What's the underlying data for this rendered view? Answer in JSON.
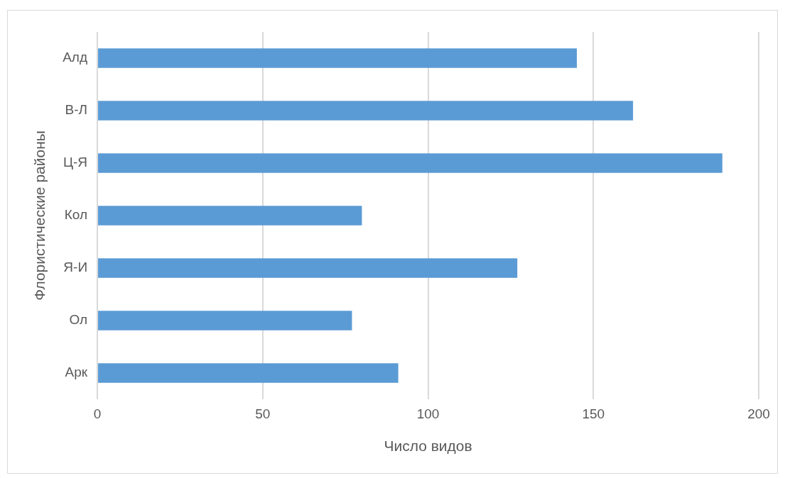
{
  "chart_data": {
    "type": "bar",
    "orientation": "horizontal",
    "xlabel": "Число видов",
    "ylabel": "Флористические районы",
    "categories": [
      "Алд",
      "В-Л",
      "Ц-Я",
      "Кол",
      "Я-И",
      "Ол",
      "Арк"
    ],
    "values": [
      145,
      162,
      189,
      80,
      127,
      77,
      91
    ],
    "color": "#5b9bd5",
    "xlim": [
      0,
      200
    ],
    "xticks": [
      0,
      50,
      100,
      150,
      200
    ],
    "grid": "x",
    "legend": false
  }
}
